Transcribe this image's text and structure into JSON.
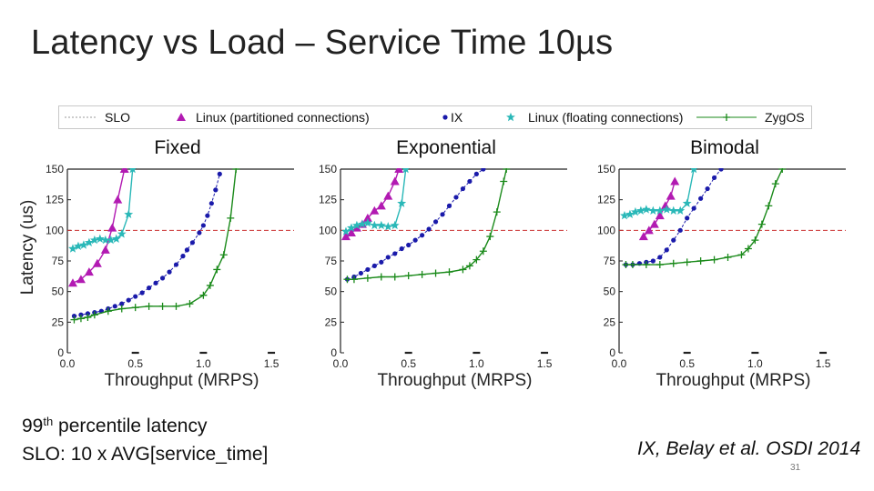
{
  "slide": {
    "title": "Latency vs Load – Service Time 10µs",
    "note_line1_prefix": "99",
    "note_line1_sup": "th",
    "note_line1_suffix": " percentile latency",
    "note_line2": "SLO: 10 x AVG[service_time]",
    "citation": "IX, Belay et al. OSDI 2014",
    "page_number": "31"
  },
  "legend": {
    "items": [
      {
        "name": "SLO",
        "color": "#cc3333",
        "marker": "none",
        "line": "dash"
      },
      {
        "name": "Linux (partitioned connections)",
        "color": "#b21ab2",
        "marker": "triangle"
      },
      {
        "name": "IX",
        "color": "#1a1aaa",
        "marker": "dot"
      },
      {
        "name": "Linux (floating connections)",
        "color": "#2ab8b8",
        "marker": "star"
      },
      {
        "name": "ZygOS",
        "color": "#1a8a1a",
        "marker": "plus"
      }
    ]
  },
  "chart_data": [
    {
      "type": "line",
      "title": "Fixed",
      "xlabel": "Throughput (MRPS)",
      "ylabel": "Latency (us)",
      "xlim": [
        0,
        1.6
      ],
      "ylim": [
        0,
        150
      ],
      "xticks": [
        "0.0",
        "0.5",
        "1.0",
        "1.5"
      ],
      "yticks": [
        "0",
        "25",
        "50",
        "75",
        "100",
        "125",
        "150"
      ],
      "slo": 100,
      "series": [
        {
          "name": "Linux (partitioned connections)",
          "x": [
            0.04,
            0.1,
            0.16,
            0.22,
            0.28,
            0.33,
            0.37,
            0.42
          ],
          "y": [
            57,
            60,
            66,
            73,
            84,
            102,
            125,
            150
          ]
        },
        {
          "name": "IX",
          "x": [
            0.05,
            0.1,
            0.15,
            0.2,
            0.25,
            0.3,
            0.35,
            0.4,
            0.45,
            0.5,
            0.55,
            0.6,
            0.65,
            0.7,
            0.75,
            0.8,
            0.85,
            0.88,
            0.92,
            0.97,
            1.0,
            1.03,
            1.06,
            1.09,
            1.12
          ],
          "y": [
            30,
            31,
            32,
            33,
            34,
            36,
            38,
            40,
            43,
            46,
            49,
            53,
            57,
            61,
            66,
            72,
            79,
            84,
            90,
            98,
            104,
            112,
            122,
            133,
            146
          ]
        },
        {
          "name": "Linux (floating connections)",
          "x": [
            0.04,
            0.08,
            0.12,
            0.16,
            0.2,
            0.24,
            0.28,
            0.32,
            0.36,
            0.4,
            0.45,
            0.48
          ],
          "y": [
            85,
            87,
            88,
            90,
            92,
            93,
            92,
            92,
            93,
            97,
            113,
            150
          ]
        },
        {
          "name": "ZygOS",
          "x": [
            0.05,
            0.1,
            0.15,
            0.2,
            0.3,
            0.4,
            0.5,
            0.6,
            0.7,
            0.8,
            0.9,
            1.0,
            1.05,
            1.1,
            1.15,
            1.2,
            1.24
          ],
          "y": [
            27,
            28,
            29,
            31,
            34,
            36,
            37,
            38,
            38,
            38,
            40,
            47,
            55,
            68,
            80,
            110,
            150
          ]
        }
      ]
    },
    {
      "type": "line",
      "title": "Exponential",
      "xlabel": "Throughput (MRPS)",
      "ylabel": "",
      "xlim": [
        0,
        1.6
      ],
      "ylim": [
        0,
        150
      ],
      "xticks": [
        "0.0",
        "0.5",
        "1.0",
        "1.5"
      ],
      "yticks": [
        "0",
        "25",
        "50",
        "75",
        "100",
        "125",
        "150"
      ],
      "slo": 100,
      "series": [
        {
          "name": "Linux (partitioned connections)",
          "x": [
            0.04,
            0.08,
            0.12,
            0.16,
            0.2,
            0.25,
            0.3,
            0.35,
            0.4,
            0.43
          ],
          "y": [
            95,
            98,
            102,
            105,
            110,
            116,
            120,
            128,
            140,
            150
          ]
        },
        {
          "name": "IX",
          "x": [
            0.05,
            0.1,
            0.15,
            0.2,
            0.25,
            0.3,
            0.35,
            0.4,
            0.45,
            0.5,
            0.55,
            0.6,
            0.65,
            0.7,
            0.75,
            0.8,
            0.85,
            0.9,
            0.95,
            1.0,
            1.05
          ],
          "y": [
            60,
            62,
            65,
            68,
            71,
            74,
            78,
            81,
            85,
            88,
            92,
            96,
            101,
            107,
            113,
            120,
            127,
            134,
            140,
            146,
            150
          ]
        },
        {
          "name": "Linux (floating connections)",
          "x": [
            0.04,
            0.08,
            0.12,
            0.16,
            0.2,
            0.25,
            0.3,
            0.35,
            0.4,
            0.45,
            0.48
          ],
          "y": [
            99,
            102,
            104,
            105,
            106,
            104,
            104,
            103,
            104,
            122,
            150
          ]
        },
        {
          "name": "ZygOS",
          "x": [
            0.05,
            0.1,
            0.2,
            0.3,
            0.4,
            0.5,
            0.6,
            0.7,
            0.8,
            0.9,
            0.95,
            1.0,
            1.05,
            1.1,
            1.15,
            1.2,
            1.22
          ],
          "y": [
            60,
            60,
            61,
            62,
            62,
            63,
            64,
            65,
            66,
            68,
            71,
            76,
            83,
            95,
            115,
            140,
            150
          ]
        }
      ]
    },
    {
      "type": "line",
      "title": "Bimodal",
      "xlabel": "Throughput (MRPS)",
      "ylabel": "",
      "xlim": [
        0,
        1.6
      ],
      "ylim": [
        0,
        150
      ],
      "xticks": [
        "0.0",
        "0.5",
        "1.0",
        "1.5"
      ],
      "yticks": [
        "0",
        "25",
        "50",
        "75",
        "100",
        "125",
        "150"
      ],
      "slo": 100,
      "series": [
        {
          "name": "Linux (partitioned connections)",
          "x": [
            0.18,
            0.22,
            0.26,
            0.3,
            0.34,
            0.38,
            0.41
          ],
          "y": [
            95,
            100,
            105,
            112,
            120,
            128,
            140
          ]
        },
        {
          "name": "IX",
          "x": [
            0.05,
            0.1,
            0.15,
            0.2,
            0.25,
            0.3,
            0.35,
            0.4,
            0.45,
            0.5,
            0.55,
            0.6,
            0.65,
            0.7,
            0.75
          ],
          "y": [
            72,
            72,
            73,
            74,
            75,
            78,
            84,
            92,
            100,
            110,
            118,
            126,
            134,
            143,
            150
          ]
        },
        {
          "name": "Linux (floating connections)",
          "x": [
            0.04,
            0.08,
            0.12,
            0.16,
            0.2,
            0.25,
            0.3,
            0.35,
            0.4,
            0.45,
            0.5,
            0.55
          ],
          "y": [
            112,
            113,
            115,
            116,
            117,
            116,
            116,
            117,
            116,
            116,
            122,
            150
          ]
        },
        {
          "name": "ZygOS",
          "x": [
            0.05,
            0.1,
            0.2,
            0.3,
            0.4,
            0.5,
            0.6,
            0.7,
            0.8,
            0.9,
            0.95,
            1.0,
            1.05,
            1.1,
            1.15,
            1.2
          ],
          "y": [
            72,
            72,
            72,
            72,
            73,
            74,
            75,
            76,
            78,
            80,
            85,
            92,
            105,
            120,
            138,
            150
          ]
        }
      ]
    }
  ]
}
